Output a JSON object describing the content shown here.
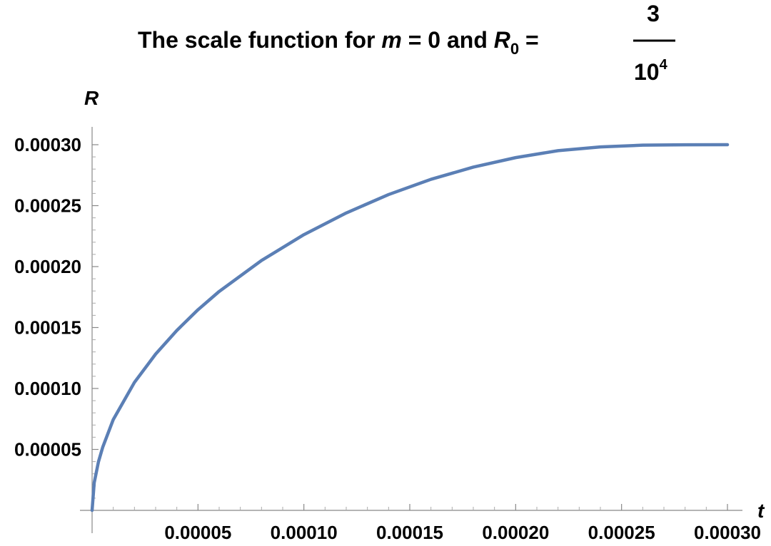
{
  "chart_data": {
    "type": "line",
    "title": {
      "prefix": "The scale function for ",
      "var_m": "m",
      "eq1": " = 0 and ",
      "var_R": "R",
      "subscript": "0",
      "eq2": " = ",
      "frac_numerator": "3",
      "frac_denominator_base": "10",
      "frac_denominator_exponent": "4"
    },
    "xlabel": "t",
    "ylabel": "R",
    "xlim": [
      0,
      0.0003
    ],
    "ylim": [
      0,
      0.0003
    ],
    "x_ticks": [
      {
        "value": 5e-05,
        "label": "0.00005"
      },
      {
        "value": 0.0001,
        "label": "0.00010"
      },
      {
        "value": 0.00015,
        "label": "0.00015"
      },
      {
        "value": 0.0002,
        "label": "0.00020"
      },
      {
        "value": 0.00025,
        "label": "0.00025"
      },
      {
        "value": 0.0003,
        "label": "0.00030"
      }
    ],
    "y_ticks": [
      {
        "value": 5e-05,
        "label": "0.00005"
      },
      {
        "value": 0.0001,
        "label": "0.00010"
      },
      {
        "value": 0.00015,
        "label": "0.00015"
      },
      {
        "value": 0.0002,
        "label": "0.00020"
      },
      {
        "value": 0.00025,
        "label": "0.00025"
      },
      {
        "value": 0.0003,
        "label": "0.00030"
      }
    ],
    "grid": false,
    "series": [
      {
        "color": "#5B7FB5",
        "x": [
          0,
          1e-06,
          3e-06,
          5e-06,
          1e-05,
          2e-05,
          3e-05,
          4e-05,
          5e-05,
          6e-05,
          8e-05,
          0.0001,
          0.00012,
          0.00014,
          0.00016,
          0.00018,
          0.0002,
          0.00022,
          0.00024,
          0.00026,
          0.00028,
          0.0003
        ],
        "y": [
          0,
          2.27e-05,
          3.98e-05,
          5.17e-05,
          7.45e-05,
          0.000105,
          0.0001282,
          0.0001476,
          0.0001646,
          0.0001796,
          0.000205,
          0.0002262,
          0.000244,
          0.0002591,
          0.0002716,
          0.0002816,
          0.0002894,
          0.0002951,
          0.0002982,
          0.0002996,
          0.0002999,
          0.0003
        ]
      }
    ]
  }
}
